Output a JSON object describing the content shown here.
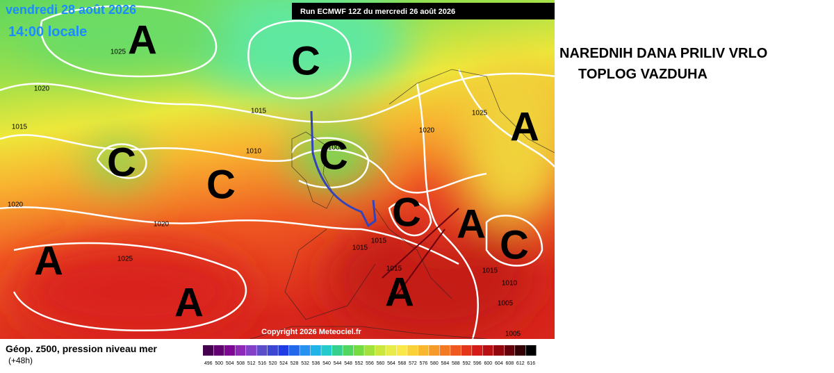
{
  "header": {
    "date": "vendredi 28 août 2026",
    "time": "14:00 locale",
    "run": "Run ECMWF 12Z du mercredi 26 août 2026"
  },
  "map": {
    "centers": [
      "A",
      "C",
      "C",
      "C",
      "C",
      "A",
      "C",
      "A",
      "C",
      "A",
      "A",
      "A"
    ],
    "isobar_labels": [
      1025,
      1020,
      1015,
      1015,
      1010,
      1020,
      1020,
      1025,
      1015,
      1015,
      1000,
      1025,
      1020,
      1015,
      1010,
      1005,
      1005,
      1015
    ],
    "copyright": "Copyright 2026 Meteociel.fr"
  },
  "annotation": [
    "NAREDNIH DANA PRILIV VRLO",
    "TOPLOG VAZDUHA"
  ],
  "legend": {
    "title": "Géop. z500, pression niveau mer",
    "lead": "(+48h)",
    "scale": [
      496,
      500,
      504,
      508,
      512,
      516,
      520,
      524,
      528,
      532,
      536,
      540,
      544,
      548,
      552,
      556,
      560,
      564,
      568,
      572,
      576,
      580,
      584,
      588,
      592,
      596,
      600,
      604,
      608,
      612,
      616
    ]
  }
}
